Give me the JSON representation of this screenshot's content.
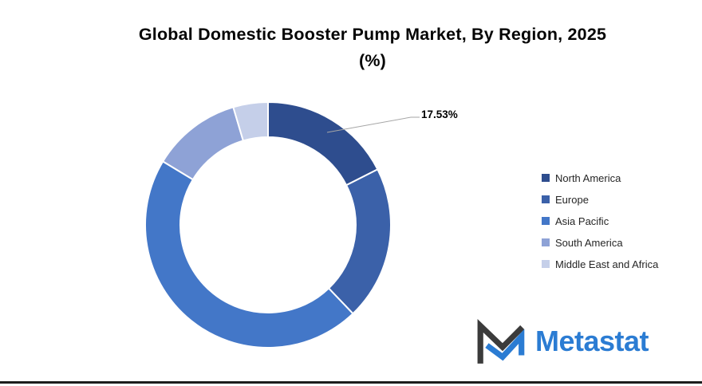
{
  "title": {
    "line1": "Global Domestic Booster Pump Market, By Region, 2025",
    "line2": "(%)"
  },
  "chart_data": {
    "type": "pie",
    "subtype": "donut",
    "title": "Global Domestic Booster Pump Market, By Region, 2025 (%)",
    "labels": [
      "North America",
      "Europe",
      "Asia Pacific",
      "South America",
      "Middle East and Africa"
    ],
    "values": [
      17.53,
      20.32,
      45.8,
      11.78,
      4.57
    ],
    "colors": [
      "#2E4D8E",
      "#3B61A9",
      "#4377C8",
      "#8EA2D6",
      "#C5CFE9"
    ],
    "start_angle_deg": 0,
    "direction": "clockwise",
    "legend_position": "right",
    "data_label": {
      "text": "17.53%",
      "slice": "North America"
    }
  },
  "logo": {
    "text": "Metastat"
  },
  "colors": {
    "data_label_text": "#000000",
    "legend_text": "#262626",
    "leader_line": "#A6A6A6",
    "segment_gap": "#FFFFFF",
    "logo_blue": "#2B7CD3",
    "logo_dark": "#3B3B3B",
    "bottom_border": "#1C1C1C"
  }
}
